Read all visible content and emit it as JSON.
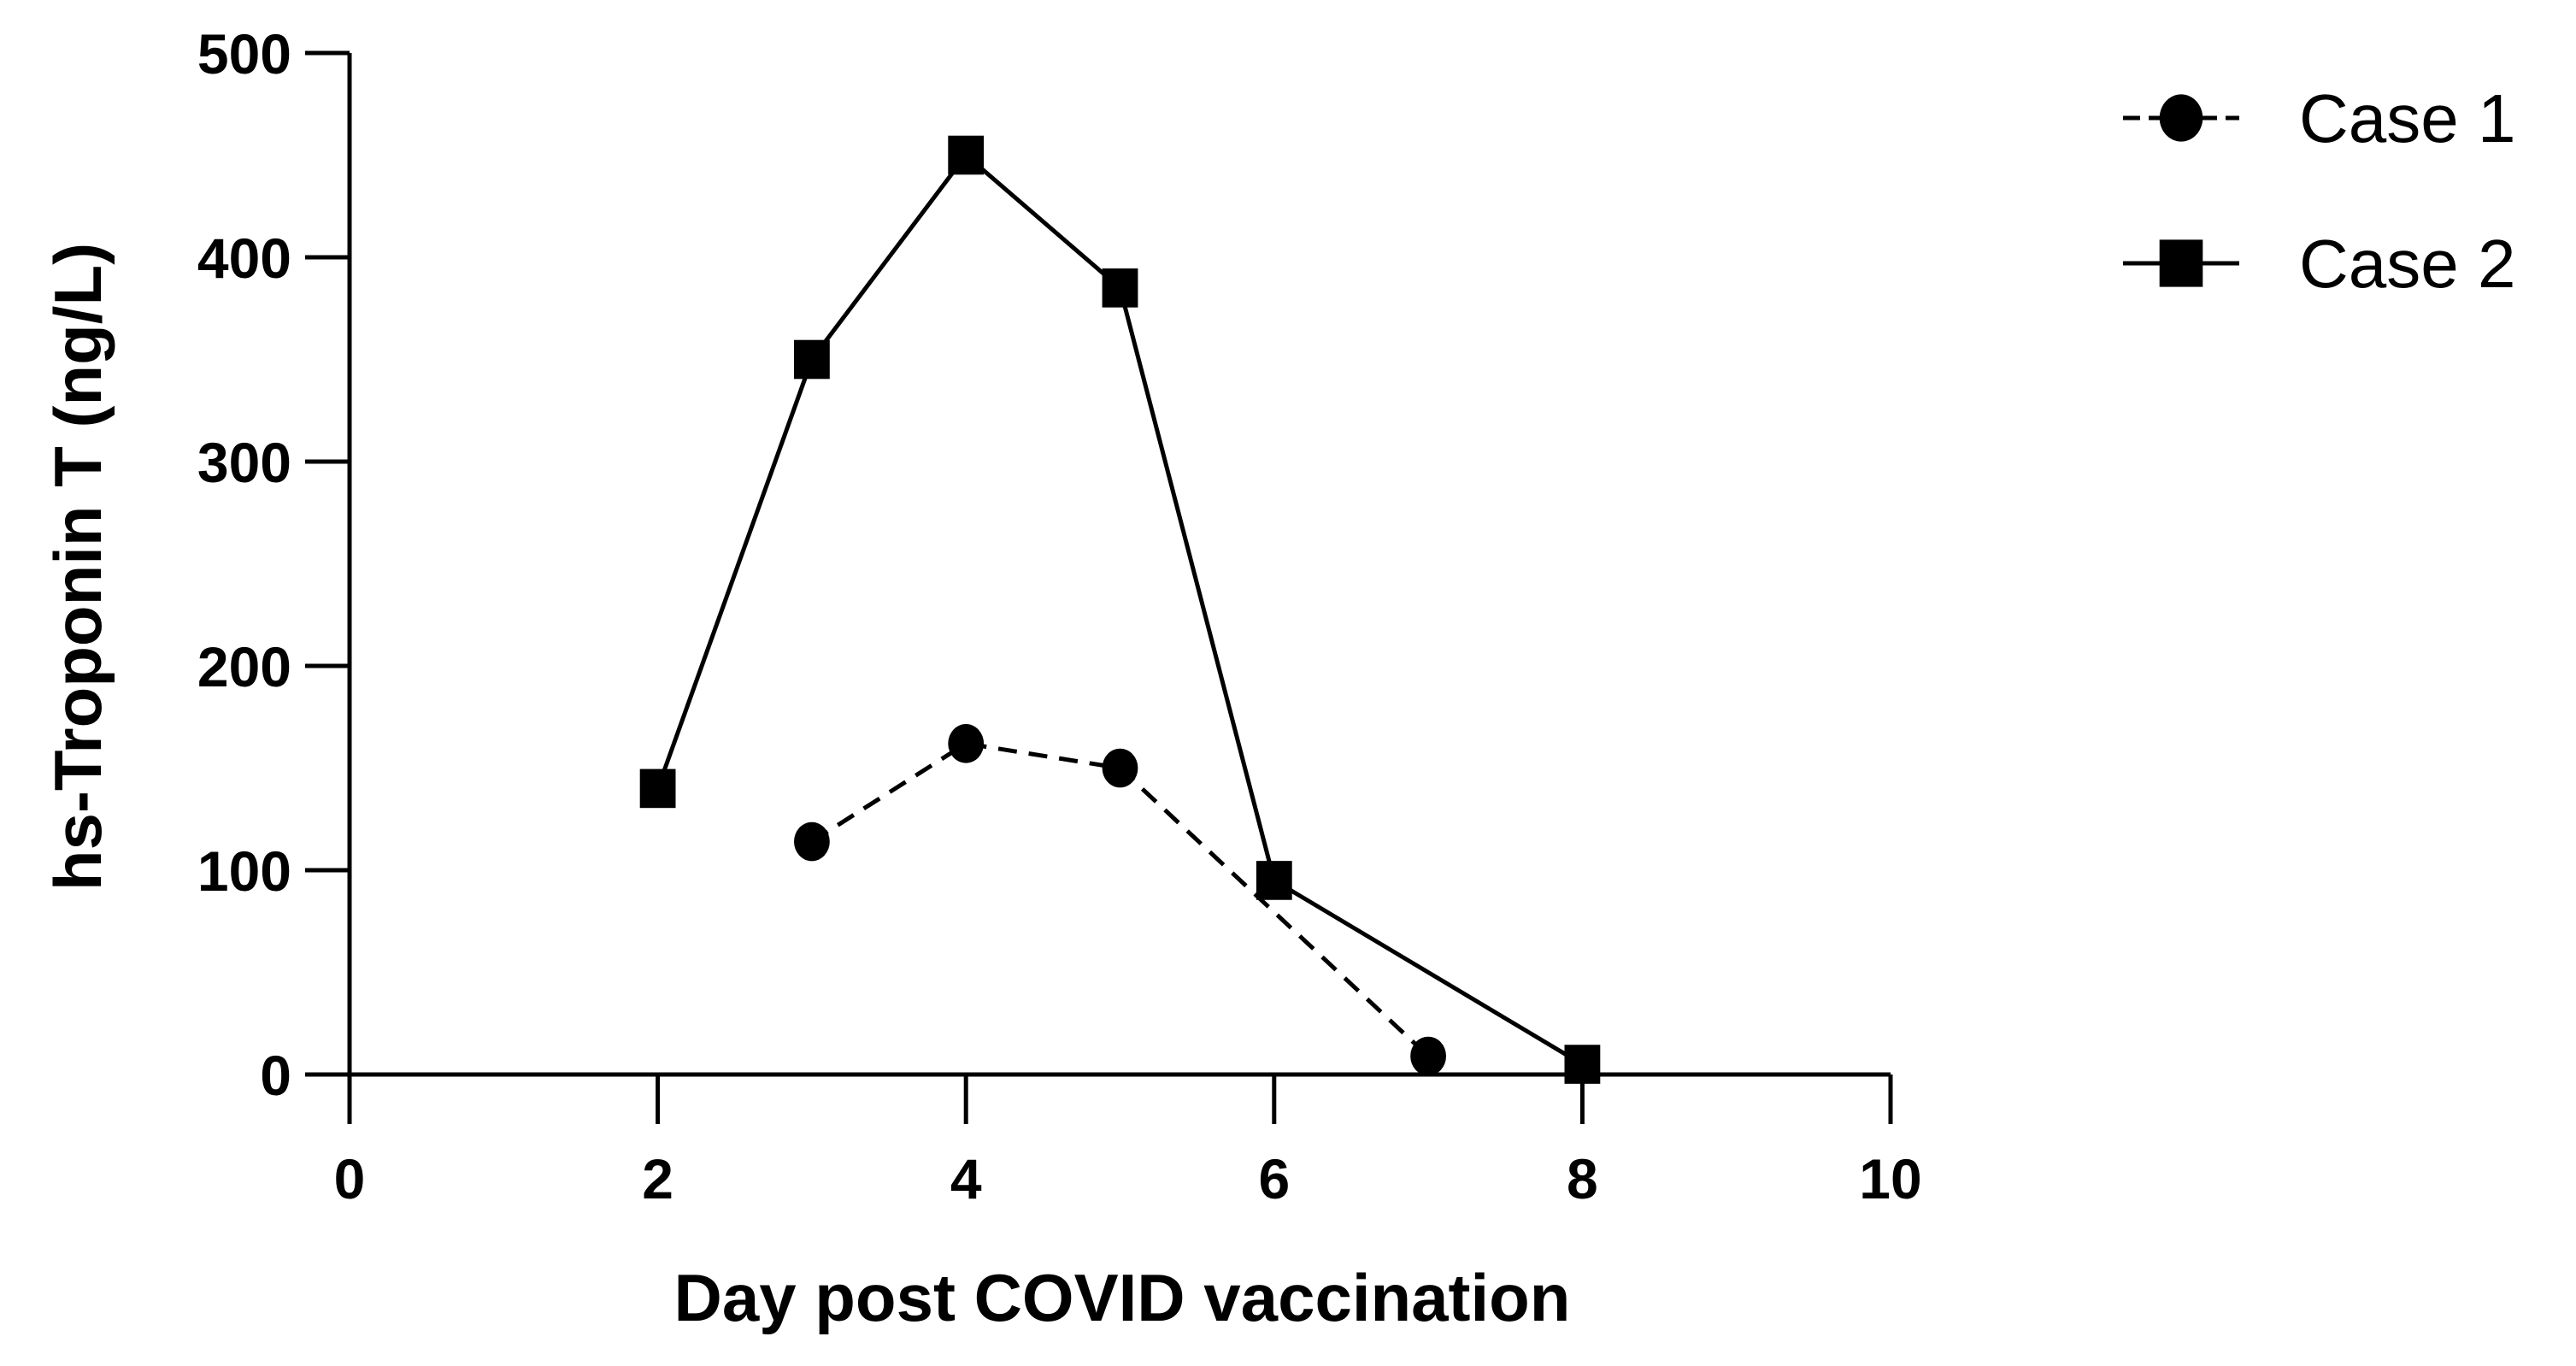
{
  "chart_data": {
    "type": "line",
    "title": "",
    "xlabel": "Day post COVID vaccination",
    "ylabel": "hs-Troponin T (ng/L)",
    "xlim": [
      0,
      10
    ],
    "ylim": [
      0,
      500
    ],
    "xticks": [
      0,
      2,
      4,
      6,
      8,
      10
    ],
    "yticks": [
      0,
      100,
      200,
      300,
      400,
      500
    ],
    "grid": false,
    "legend_position": "top-right, outside plot",
    "series": [
      {
        "name": "Case 1",
        "marker": "circle",
        "line_style": "dashed",
        "color": "#000000",
        "x": [
          3,
          4,
          5,
          7
        ],
        "y": [
          114,
          162,
          150,
          9
        ]
      },
      {
        "name": "Case 2",
        "marker": "square",
        "line_style": "solid",
        "color": "#000000",
        "x": [
          2,
          3,
          4,
          5,
          6,
          8
        ],
        "y": [
          140,
          350,
          450,
          385,
          95,
          5
        ]
      }
    ]
  },
  "axes": {
    "x_title": "Day post COVID vaccination",
    "y_title": "hs-Troponin T (ng/L)",
    "x_tick_labels": [
      "0",
      "2",
      "4",
      "6",
      "8",
      "10"
    ],
    "y_tick_labels": [
      "0",
      "100",
      "200",
      "300",
      "400",
      "500"
    ]
  },
  "legend": {
    "items": [
      {
        "label": "Case 1",
        "marker": "circle-icon",
        "line": "dashed"
      },
      {
        "label": "Case 2",
        "marker": "square-icon",
        "line": "solid"
      }
    ]
  }
}
